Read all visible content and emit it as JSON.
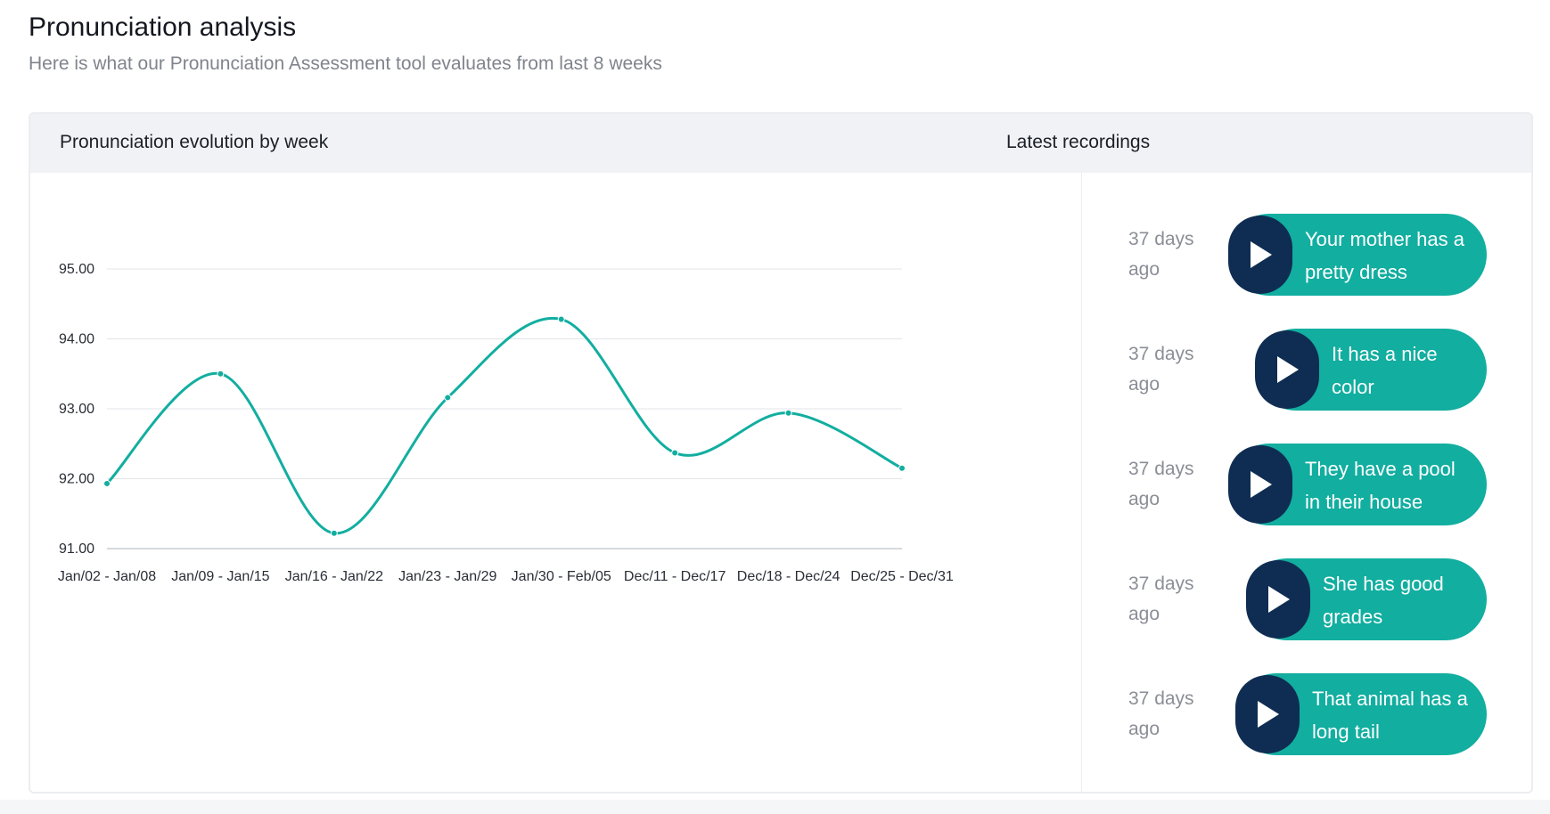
{
  "page": {
    "title": "Pronunciation analysis",
    "subtitle": "Here is what our Pronunciation Assessment tool evaluates from last 8 weeks"
  },
  "chart_panel": {
    "title": "Pronunciation evolution by week"
  },
  "recordings_panel": {
    "title": "Latest recordings",
    "items": [
      {
        "age": "37 days ago",
        "text": "Your mother has a pretty dress",
        "icon": "play-icon"
      },
      {
        "age": "37 days ago",
        "text": "It has a nice color",
        "icon": "play-icon"
      },
      {
        "age": "37 days ago",
        "text": "They have a pool in their house",
        "icon": "play-icon"
      },
      {
        "age": "37 days ago",
        "text": "She has good grades",
        "icon": "play-icon"
      },
      {
        "age": "37 days ago",
        "text": "That animal has a long tail",
        "icon": "play-icon"
      }
    ]
  },
  "colors": {
    "accent": "#12aea0",
    "play_button": "#0f2d52",
    "grid": "#e3e5e8"
  },
  "chart_data": {
    "type": "line",
    "categories": [
      "Jan/02 - Jan/08",
      "Jan/09 - Jan/15",
      "Jan/16 - Jan/22",
      "Jan/23 - Jan/29",
      "Jan/30 - Feb/05",
      "Dec/11 - Dec/17",
      "Dec/18 - Dec/24",
      "Dec/25 - Dec/31"
    ],
    "series": [
      {
        "values": [
          91.93,
          93.5,
          91.22,
          93.16,
          94.28,
          92.37,
          92.94,
          92.15
        ]
      }
    ],
    "yticks": [
      "91.00",
      "92.00",
      "93.00",
      "94.00",
      "95.00"
    ],
    "ylim": [
      91,
      95
    ],
    "grid": true,
    "legend": "none"
  }
}
